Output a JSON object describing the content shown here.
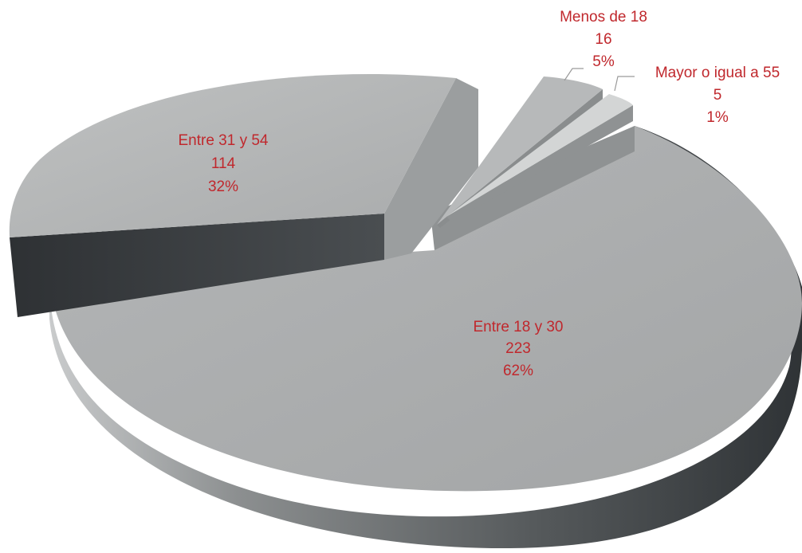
{
  "chart_data": {
    "type": "pie",
    "style": "3d-exploded",
    "colors": {
      "label_text": "#c0282d",
      "leader_line": "#9a9a9a"
    },
    "slices": [
      {
        "category": "Entre 18 y 30",
        "count": "223",
        "percent": "62%",
        "value": 223,
        "share": 0.62
      },
      {
        "category": "Entre 31 y 54",
        "count": "114",
        "percent": "32%",
        "value": 114,
        "share": 0.32
      },
      {
        "category": "Menos de 18",
        "count": "16",
        "percent": "5%",
        "value": 16,
        "share": 0.05
      },
      {
        "category": "Mayor o igual a 55",
        "count": "5",
        "percent": "1%",
        "value": 5,
        "share": 0.01
      }
    ]
  }
}
